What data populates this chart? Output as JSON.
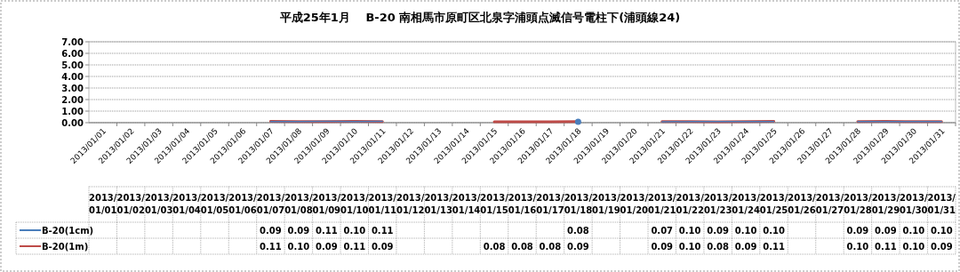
{
  "chart_data": {
    "type": "line",
    "title": "平成25年1月　 B-20 南相馬市原町区北泉字浦頭点滅信号電柱下(浦頭線24)",
    "categories": [
      "2013/01/01",
      "2013/01/02",
      "2013/01/03",
      "2013/01/04",
      "2013/01/05",
      "2013/01/06",
      "2013/01/07",
      "2013/01/08",
      "2013/01/09",
      "2013/01/10",
      "2013/01/11",
      "2013/01/12",
      "2013/01/13",
      "2013/01/14",
      "2013/01/15",
      "2013/01/16",
      "2013/01/17",
      "2013/01/18",
      "2013/01/19",
      "2013/01/20",
      "2013/01/21",
      "2013/01/22",
      "2013/01/23",
      "2013/01/24",
      "2013/01/25",
      "2013/01/26",
      "2013/01/27",
      "2013/01/28",
      "2013/01/29",
      "2013/01/30",
      "2013/01/31"
    ],
    "series": [
      {
        "name": "B-20(1cm)",
        "color": "#4a7ebb",
        "values": [
          null,
          null,
          null,
          null,
          null,
          null,
          0.09,
          0.09,
          0.11,
          0.1,
          0.11,
          null,
          null,
          null,
          null,
          null,
          null,
          0.08,
          null,
          null,
          0.07,
          0.1,
          0.09,
          0.1,
          0.1,
          null,
          null,
          0.09,
          0.09,
          0.1,
          0.1
        ],
        "value_labels": [
          null,
          null,
          null,
          null,
          null,
          null,
          "0.09",
          "0.09",
          "0.11",
          "0.10",
          "0.11",
          null,
          null,
          null,
          null,
          null,
          null,
          "0.08",
          null,
          null,
          "0.07",
          "0.10",
          "0.09",
          "0.10",
          "0.10",
          null,
          null,
          "0.09",
          "0.09",
          "0.10",
          "0.10"
        ]
      },
      {
        "name": "B-20(1m)",
        "color": "#be4b48",
        "values": [
          null,
          null,
          null,
          null,
          null,
          null,
          0.11,
          0.1,
          0.09,
          0.11,
          0.09,
          null,
          null,
          null,
          0.08,
          0.08,
          0.08,
          0.09,
          null,
          null,
          0.09,
          0.1,
          0.08,
          0.09,
          0.11,
          null,
          null,
          0.1,
          0.11,
          0.1,
          0.09
        ],
        "value_labels": [
          null,
          null,
          null,
          null,
          null,
          null,
          "0.11",
          "0.10",
          "0.09",
          "0.11",
          "0.09",
          null,
          null,
          null,
          "0.08",
          "0.08",
          "0.08",
          "0.09",
          null,
          null,
          "0.09",
          "0.10",
          "0.08",
          "0.09",
          "0.11",
          null,
          null,
          "0.10",
          "0.11",
          "0.10",
          "0.09"
        ]
      }
    ],
    "ylim": [
      0,
      7
    ],
    "yticks": [
      {
        "value": 0,
        "label": "0.00"
      },
      {
        "value": 1,
        "label": "1.00"
      },
      {
        "value": 2,
        "label": "2.00"
      },
      {
        "value": 3,
        "label": "3.00"
      },
      {
        "value": 4,
        "label": "4.00"
      },
      {
        "value": 5,
        "label": "5.00"
      },
      {
        "value": 6,
        "label": "6.00"
      },
      {
        "value": 7,
        "label": "7.00"
      }
    ],
    "grid": "y",
    "legend": "bottom left",
    "marker": "none",
    "line_style": "solid"
  }
}
